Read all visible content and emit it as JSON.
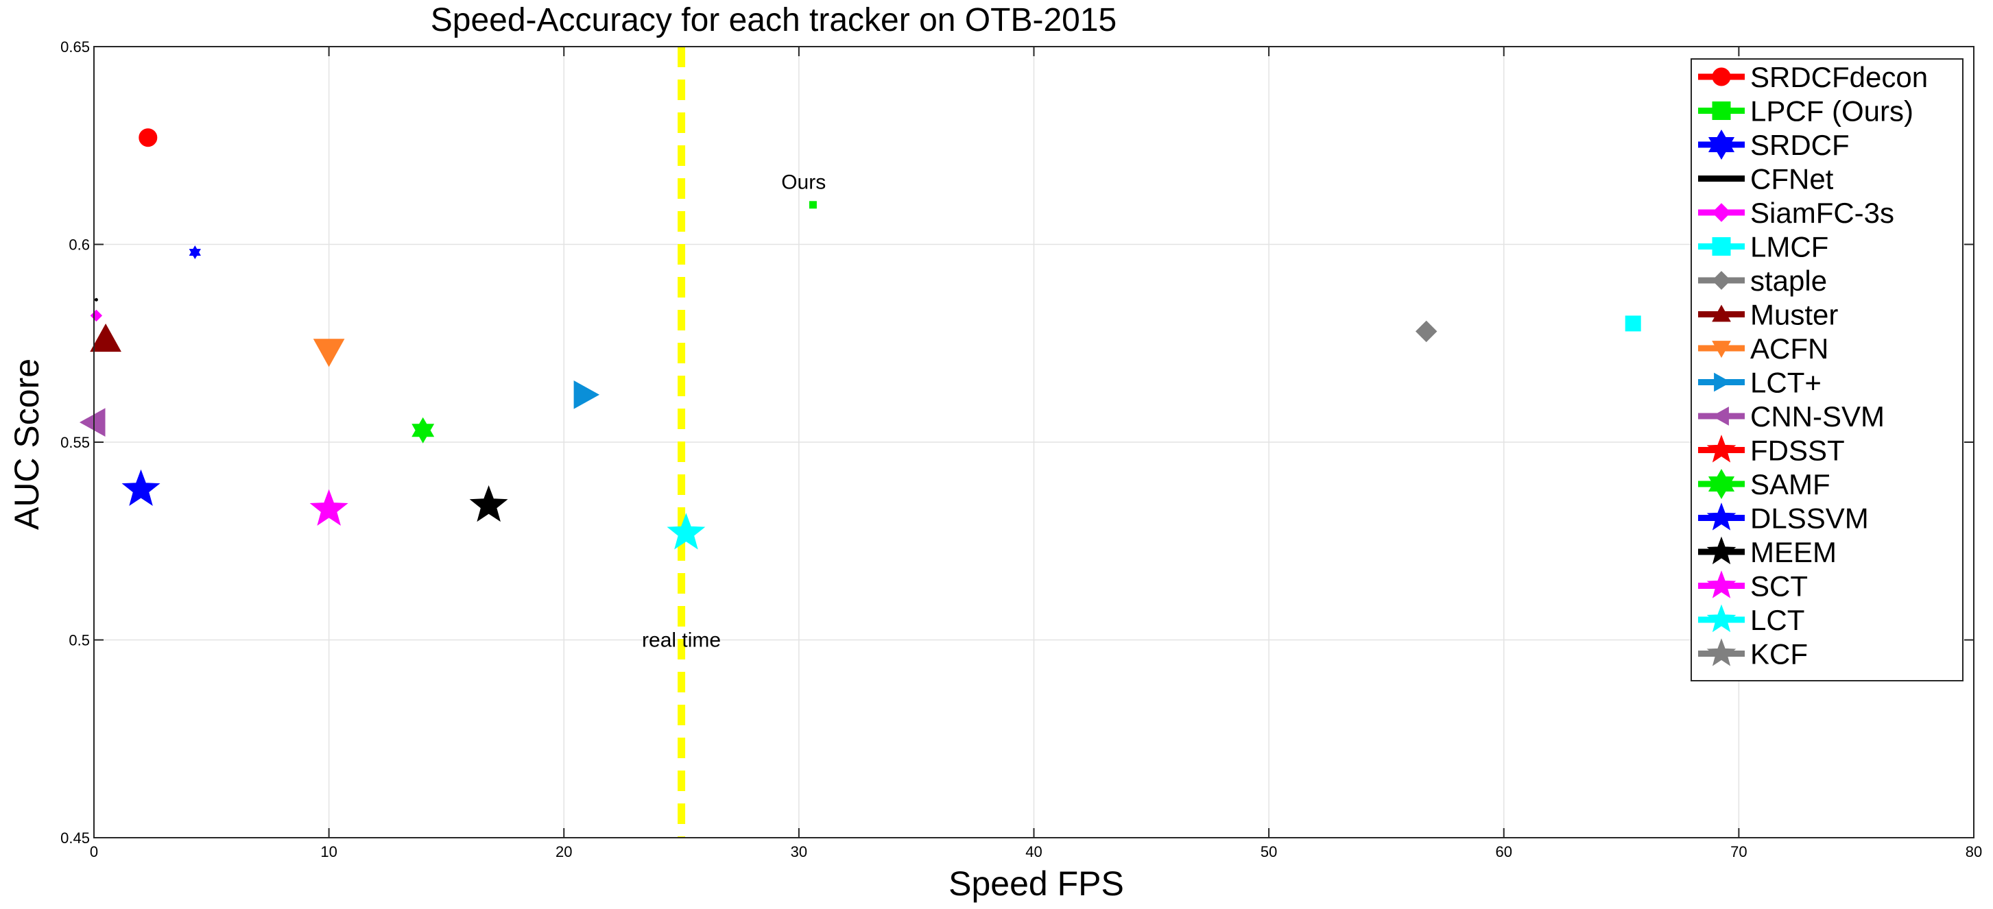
{
  "chart_data": {
    "type": "scatter",
    "title": "Speed-Accuracy for each tracker on OTB-2015",
    "xlabel": "Speed FPS",
    "ylabel": "AUC Score",
    "xlim": [
      0,
      80
    ],
    "ylim": [
      0.45,
      0.65
    ],
    "xticks": [
      "0",
      "10",
      "20",
      "30",
      "40",
      "50",
      "60",
      "70",
      "80"
    ],
    "yticks": [
      "0.45",
      "0.5",
      "0.55",
      "0.6",
      "0.65"
    ],
    "grid": true,
    "legend_position": "top-right",
    "reference_line": {
      "x": 25,
      "label": "real time",
      "label_y": 0.5,
      "color": "#ffff00"
    },
    "annotations": [
      {
        "text": "Ours",
        "x": 30.2,
        "y": 0.614
      }
    ],
    "series": [
      {
        "name": "SRDCFdecon",
        "marker": "circle",
        "color": "#ff0000",
        "x": 2.3,
        "y": 0.627,
        "size": 13
      },
      {
        "name": "LPCF (Ours)",
        "marker": "square",
        "color": "#00ee00",
        "x": 30.6,
        "y": 0.61,
        "size": 5
      },
      {
        "name": "SRDCF",
        "marker": "hexagram",
        "color": "#0000ff",
        "x": 4.3,
        "y": 0.598,
        "size": 9
      },
      {
        "name": "CFNet",
        "marker": "point",
        "color": "#000000",
        "x": 0.1,
        "y": 0.586,
        "size": 2
      },
      {
        "name": "SiamFC-3s",
        "marker": "diamond",
        "color": "#ff00ff",
        "x": 0.1,
        "y": 0.582,
        "size": 8
      },
      {
        "name": "LMCF",
        "marker": "square",
        "color": "#00ffff",
        "x": 65.5,
        "y": 0.58,
        "size": 11
      },
      {
        "name": "staple",
        "marker": "diamond",
        "color": "#808080",
        "x": 56.7,
        "y": 0.578,
        "size": 15
      },
      {
        "name": "Muster",
        "marker": "triangle-up",
        "color": "#8b0000",
        "x": 0.5,
        "y": 0.576,
        "size": 22
      },
      {
        "name": "ACFN",
        "marker": "triangle-down",
        "color": "#ff7f27",
        "x": 10.0,
        "y": 0.573,
        "size": 22
      },
      {
        "name": "LCT+",
        "marker": "triangle-right",
        "color": "#0a8fd8",
        "x": 20.9,
        "y": 0.562,
        "size": 20
      },
      {
        "name": "CNN-SVM",
        "marker": "triangle-left",
        "color": "#a34eaa",
        "x": 0.0,
        "y": 0.555,
        "size": 20
      },
      {
        "name": "FDSST",
        "marker": "star",
        "color": "#ff0000",
        "x": null,
        "y": null,
        "size": 22
      },
      {
        "name": "SAMF",
        "marker": "hexagram",
        "color": "#00ee00",
        "x": 14.0,
        "y": 0.553,
        "size": 18
      },
      {
        "name": "DLSSVM",
        "marker": "star",
        "color": "#0000ff",
        "x": 2.0,
        "y": 0.538,
        "size": 28
      },
      {
        "name": "MEEM",
        "marker": "star",
        "color": "#000000",
        "x": 16.8,
        "y": 0.534,
        "size": 28
      },
      {
        "name": "SCT",
        "marker": "star",
        "color": "#ff00ff",
        "x": 10.0,
        "y": 0.533,
        "size": 28
      },
      {
        "name": "LCT",
        "marker": "star",
        "color": "#00ffff",
        "x": 25.2,
        "y": 0.527,
        "size": 28
      },
      {
        "name": "KCF",
        "marker": "star",
        "color": "#808080",
        "x": null,
        "y": null,
        "size": 22
      }
    ]
  }
}
